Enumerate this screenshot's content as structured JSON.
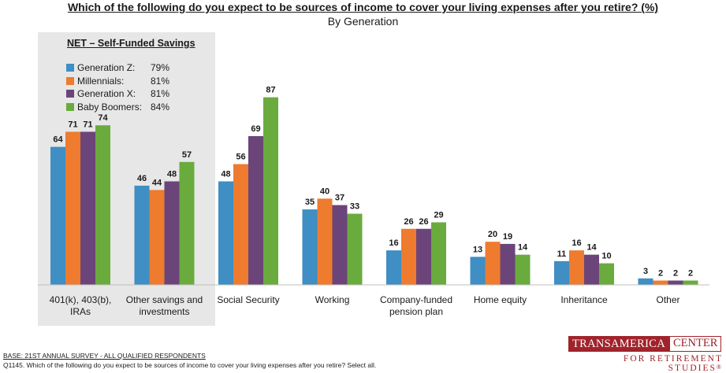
{
  "title": "Which of the following do you expect to be sources of income to cover your living expenses after you retire? (%)",
  "subtitle": "By Generation",
  "net_box": {
    "title": "NET – Self-Funded Savings",
    "rows": [
      {
        "name": "Generation Z:",
        "value": "79%"
      },
      {
        "name": "Millennials:",
        "value": "81%"
      },
      {
        "name": "Generation X:",
        "value": "81%"
      },
      {
        "name": "Baby Boomers:",
        "value": "84%"
      }
    ]
  },
  "chart_data": {
    "type": "bar",
    "categories": [
      [
        "401(k), 403(b),",
        "IRAs"
      ],
      [
        "Other savings and",
        "investments"
      ],
      [
        "Social Security"
      ],
      [
        "Working"
      ],
      [
        "Company-funded",
        "pension plan"
      ],
      [
        "Home equity"
      ],
      [
        "Inheritance"
      ],
      [
        "Other"
      ]
    ],
    "series": [
      {
        "name": "Generation Z",
        "color": "#3f8ec4",
        "values": [
          64,
          46,
          48,
          35,
          16,
          13,
          11,
          3
        ]
      },
      {
        "name": "Millennials",
        "color": "#ee7b2e",
        "values": [
          71,
          44,
          56,
          40,
          26,
          20,
          16,
          2
        ]
      },
      {
        "name": "Generation X",
        "color": "#6b4579",
        "values": [
          71,
          48,
          69,
          37,
          26,
          19,
          14,
          2
        ]
      },
      {
        "name": "Baby Boomers",
        "color": "#6aab3e",
        "values": [
          74,
          57,
          87,
          33,
          29,
          14,
          10,
          2
        ]
      }
    ],
    "ylim": [
      0,
      100
    ],
    "grid": false,
    "legend": "inside-left box"
  },
  "footer": {
    "base": "BASE:  21ST ANNUAL SURVEY - ALL QUALIFIED RESPONDENTS",
    "question": "Q1145. Which of the following do you expect to be sources of income to cover your living expenses after you retire? Select all."
  },
  "logo": {
    "part1": "TRANSAMERICA",
    "part2": "CENTER",
    "tagline": "FOR RETIREMENT STUDIES",
    "mark": "®"
  }
}
